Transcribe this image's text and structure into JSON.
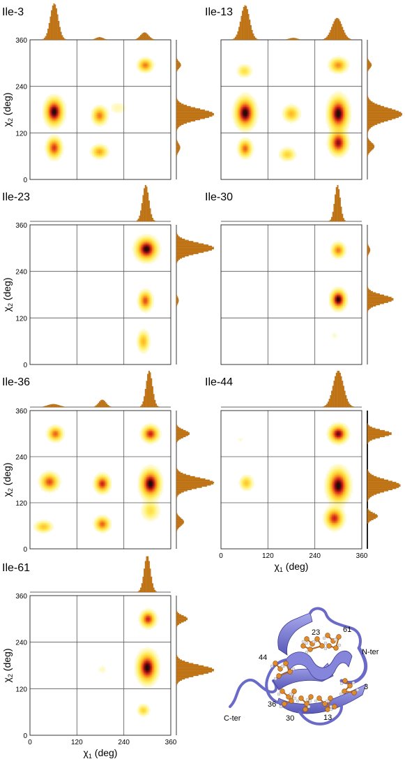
{
  "chart_data": [
    {
      "type": "heatmap",
      "title": "Ile-3",
      "ylabel": "χ2 (deg)",
      "xlim": [
        0,
        360
      ],
      "ylim": [
        0,
        360
      ],
      "x_ticks": [],
      "y_ticks": [
        "0",
        "120",
        "240",
        "360"
      ],
      "grid": true,
      "density_peaks": [
        {
          "x": 62,
          "y": 175,
          "weight": 1.0,
          "spread": [
            12,
            18
          ]
        },
        {
          "x": 62,
          "y": 82,
          "weight": 0.7,
          "spread": [
            10,
            14
          ]
        },
        {
          "x": 178,
          "y": 165,
          "weight": 0.55,
          "spread": [
            10,
            12
          ]
        },
        {
          "x": 178,
          "y": 72,
          "weight": 0.45,
          "spread": [
            11,
            9
          ]
        },
        {
          "x": 295,
          "y": 295,
          "weight": 0.55,
          "spread": [
            10,
            9
          ]
        },
        {
          "x": 225,
          "y": 185,
          "weight": 0.08,
          "spread": [
            14,
            10
          ]
        }
      ],
      "chi1_marginal": [
        {
          "x": 62,
          "h": 1.0,
          "w": 10
        },
        {
          "x": 178,
          "h": 0.07,
          "w": 9
        },
        {
          "x": 293,
          "h": 0.2,
          "w": 10
        }
      ],
      "chi2_marginal": [
        {
          "y": 295,
          "h": 0.12,
          "w": 8
        },
        {
          "y": 168,
          "h": 1.0,
          "w": 14
        },
        {
          "y": 82,
          "h": 0.1,
          "w": 10
        }
      ]
    },
    {
      "type": "heatmap",
      "title": "Ile-13",
      "ylabel": "",
      "xlim": [
        0,
        360
      ],
      "ylim": [
        0,
        360
      ],
      "x_ticks": [],
      "y_ticks": [],
      "grid": true,
      "density_peaks": [
        {
          "x": 62,
          "y": 172,
          "weight": 1.0,
          "spread": [
            13,
            20
          ]
        },
        {
          "x": 62,
          "y": 80,
          "weight": 0.6,
          "spread": [
            9,
            12
          ]
        },
        {
          "x": 60,
          "y": 280,
          "weight": 0.25,
          "spread": [
            10,
            9
          ]
        },
        {
          "x": 180,
          "y": 170,
          "weight": 0.4,
          "spread": [
            11,
            11
          ]
        },
        {
          "x": 170,
          "y": 65,
          "weight": 0.3,
          "spread": [
            11,
            9
          ]
        },
        {
          "x": 300,
          "y": 170,
          "weight": 1.0,
          "spread": [
            13,
            22
          ]
        },
        {
          "x": 300,
          "y": 95,
          "weight": 0.85,
          "spread": [
            12,
            16
          ]
        },
        {
          "x": 300,
          "y": 295,
          "weight": 0.5,
          "spread": [
            12,
            10
          ]
        }
      ],
      "chi1_marginal": [
        {
          "x": 62,
          "h": 0.95,
          "w": 11
        },
        {
          "x": 185,
          "h": 0.05,
          "w": 10
        },
        {
          "x": 297,
          "h": 0.6,
          "w": 13
        }
      ],
      "chi2_marginal": [
        {
          "y": 295,
          "h": 0.12,
          "w": 8
        },
        {
          "y": 168,
          "h": 1.0,
          "w": 16
        },
        {
          "y": 85,
          "h": 0.2,
          "w": 10
        }
      ]
    },
    {
      "type": "heatmap",
      "title": "Ile-23",
      "ylabel": "χ2 (deg)",
      "xlim": [
        0,
        360
      ],
      "ylim": [
        0,
        360
      ],
      "x_ticks": [],
      "y_ticks": [
        "0",
        "120",
        "240",
        "360"
      ],
      "grid": true,
      "density_peaks": [
        {
          "x": 298,
          "y": 298,
          "weight": 1.0,
          "spread": [
            14,
            15
          ]
        },
        {
          "x": 295,
          "y": 165,
          "weight": 0.65,
          "spread": [
            9,
            13
          ]
        },
        {
          "x": 290,
          "y": 60,
          "weight": 0.4,
          "spread": [
            8,
            14
          ]
        }
      ],
      "chi1_marginal": [
        {
          "x": 296,
          "h": 1.0,
          "w": 8
        }
      ],
      "chi2_marginal": [
        {
          "y": 300,
          "h": 1.0,
          "w": 13
        },
        {
          "y": 165,
          "h": 0.06,
          "w": 8
        }
      ]
    },
    {
      "type": "heatmap",
      "title": "Ile-30",
      "ylabel": "",
      "xlim": [
        0,
        360
      ],
      "ylim": [
        0,
        360
      ],
      "x_ticks": [],
      "y_ticks": [],
      "grid": true,
      "density_peaks": [
        {
          "x": 300,
          "y": 295,
          "weight": 0.55,
          "spread": [
            9,
            10
          ]
        },
        {
          "x": 300,
          "y": 168,
          "weight": 1.0,
          "spread": [
            10,
            13
          ]
        },
        {
          "x": 290,
          "y": 75,
          "weight": 0.06,
          "spread": [
            6,
            6
          ]
        }
      ],
      "chi1_marginal": [
        {
          "x": 298,
          "h": 1.0,
          "w": 7
        }
      ],
      "chi2_marginal": [
        {
          "y": 295,
          "h": 0.08,
          "w": 8
        },
        {
          "y": 168,
          "h": 0.75,
          "w": 11
        }
      ]
    },
    {
      "type": "heatmap",
      "title": "Ile-36",
      "ylabel": "χ2 (deg)",
      "xlim": [
        0,
        360
      ],
      "ylim": [
        0,
        360
      ],
      "x_ticks": [],
      "y_ticks": [
        "0",
        "120",
        "240",
        "360"
      ],
      "grid": true,
      "density_peaks": [
        {
          "x": 65,
          "y": 300,
          "weight": 0.6,
          "spread": [
            10,
            10
          ]
        },
        {
          "x": 50,
          "y": 175,
          "weight": 0.65,
          "spread": [
            12,
            12
          ]
        },
        {
          "x": 35,
          "y": 58,
          "weight": 0.35,
          "spread": [
            12,
            8
          ]
        },
        {
          "x": 185,
          "y": 170,
          "weight": 0.75,
          "spread": [
            10,
            12
          ]
        },
        {
          "x": 185,
          "y": 65,
          "weight": 0.6,
          "spread": [
            10,
            10
          ]
        },
        {
          "x": 308,
          "y": 300,
          "weight": 0.75,
          "spread": [
            11,
            11
          ]
        },
        {
          "x": 308,
          "y": 170,
          "weight": 1.0,
          "spread": [
            13,
            19
          ]
        },
        {
          "x": 308,
          "y": 100,
          "weight": 0.25,
          "spread": [
            12,
            14
          ]
        }
      ],
      "chi1_marginal": [
        {
          "x": 60,
          "h": 0.08,
          "w": 14
        },
        {
          "x": 185,
          "h": 0.2,
          "w": 9
        },
        {
          "x": 305,
          "h": 1.0,
          "w": 8
        }
      ],
      "chi2_marginal": [
        {
          "y": 300,
          "h": 0.35,
          "w": 9
        },
        {
          "y": 172,
          "h": 1.0,
          "w": 13
        },
        {
          "y": 70,
          "h": 0.2,
          "w": 10
        }
      ]
    },
    {
      "type": "heatmap",
      "title": "Ile-44",
      "xlabel": "χ1 (deg)",
      "ylabel": "",
      "xlim": [
        0,
        360
      ],
      "ylim": [
        0,
        360
      ],
      "x_ticks": [
        "0",
        "120",
        "240",
        "360"
      ],
      "y_ticks": [],
      "grid": true,
      "density_peaks": [
        {
          "x": 300,
          "y": 300,
          "weight": 0.9,
          "spread": [
            12,
            12
          ]
        },
        {
          "x": 300,
          "y": 165,
          "weight": 1.0,
          "spread": [
            14,
            22
          ]
        },
        {
          "x": 290,
          "y": 80,
          "weight": 0.75,
          "spread": [
            12,
            14
          ]
        },
        {
          "x": 65,
          "y": 172,
          "weight": 0.35,
          "spread": [
            9,
            10
          ]
        },
        {
          "x": 50,
          "y": 285,
          "weight": 0.05,
          "spread": [
            6,
            5
          ]
        }
      ],
      "chi1_marginal": [
        {
          "x": 300,
          "h": 1.0,
          "w": 13
        }
      ],
      "chi2_marginal": [
        {
          "y": 300,
          "h": 0.7,
          "w": 9
        },
        {
          "y": 165,
          "h": 0.95,
          "w": 14
        },
        {
          "y": 85,
          "h": 0.3,
          "w": 8
        }
      ]
    },
    {
      "type": "heatmap",
      "title": "Ile-61",
      "xlabel": "χ1 (deg)",
      "ylabel": "χ2 (deg)",
      "xlim": [
        0,
        360
      ],
      "ylim": [
        0,
        360
      ],
      "x_ticks": [
        "0",
        "120",
        "240",
        "360"
      ],
      "y_ticks": [
        "0",
        "120",
        "240",
        "360"
      ],
      "grid": true,
      "density_peaks": [
        {
          "x": 302,
          "y": 300,
          "weight": 0.75,
          "spread": [
            10,
            11
          ]
        },
        {
          "x": 300,
          "y": 175,
          "weight": 1.0,
          "spread": [
            13,
            20
          ]
        },
        {
          "x": 290,
          "y": 65,
          "weight": 0.3,
          "spread": [
            8,
            8
          ]
        },
        {
          "x": 185,
          "y": 170,
          "weight": 0.06,
          "spread": [
            8,
            8
          ]
        }
      ],
      "chi1_marginal": [
        {
          "x": 300,
          "h": 1.0,
          "w": 8
        }
      ],
      "chi2_marginal": [
        {
          "y": 300,
          "h": 0.3,
          "w": 8
        },
        {
          "y": 168,
          "h": 1.0,
          "w": 13
        }
      ]
    }
  ],
  "structure_labels": {
    "residues": [
      "23",
      "61",
      "44",
      "3",
      "36",
      "30",
      "13"
    ],
    "n_terminus": "N-ter",
    "c_terminus": "C-ter"
  },
  "colors": {
    "histogram": "#c77a1a",
    "histogram_edge": "#a35e08",
    "ribbon": "#7d7dd6",
    "ribbon_dark": "#4f4fae",
    "atom_carbon": "#e08a2a",
    "atom_hydrogen": "#e8e8e8"
  }
}
